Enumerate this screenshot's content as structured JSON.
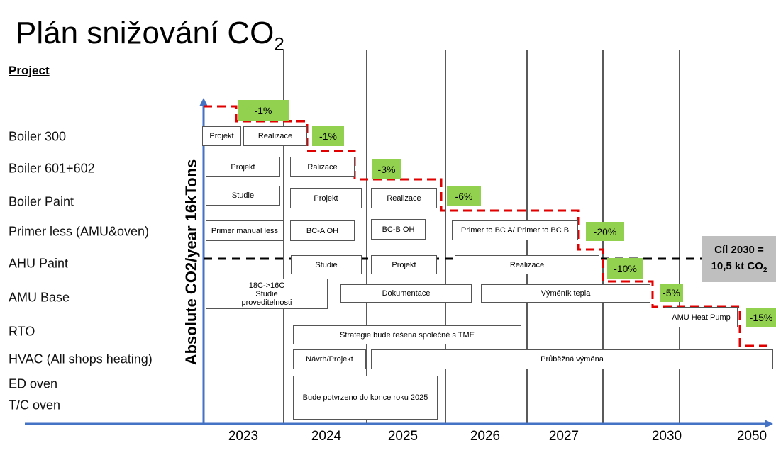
{
  "title": {
    "text": "Plán snižování CO",
    "subscript": "2"
  },
  "project_header": "Project",
  "y_axis_label": "Absolute CO2/year 16kTons",
  "rows": [
    "Boiler 300",
    "Boiler 601+602",
    "Boiler Paint",
    "Primer less (AMU&oven)",
    "AHU Paint",
    "AMU Base",
    "RTO",
    "HVAC (All shops heating)",
    "ED oven",
    "T/C oven"
  ],
  "years": [
    "2023",
    "2024",
    "2025",
    "2026",
    "2027",
    "2030",
    "2050"
  ],
  "boxes": [
    "Projekt",
    "Realizace",
    "Projekt",
    "Ralizace",
    "Studie",
    "Projekt",
    "Realizace",
    "Primer manual less",
    "BC-A OH",
    "BC-B OH",
    "Primer to BC A/ Primer to BC B",
    "Studie",
    "Projekt",
    "Realizace",
    "18C->16C    Studie proveditelnosti",
    "Dokumentace",
    "Výměník tepla",
    "AMU Heat Pump",
    "Strategie bude řešena společně s TME",
    "Návrh/Projekt",
    "Průběžná výměna",
    "Bude potvrzeno do konce roku 2025"
  ],
  "reductions": [
    "-1%",
    "-1%",
    "-3%",
    "-6%",
    "-20%",
    "-10%",
    "-5%",
    "-15%"
  ],
  "goal": {
    "line1": "Cíl 2030 =",
    "line2": "10,5 kt CO",
    "subscript": "2"
  }
}
